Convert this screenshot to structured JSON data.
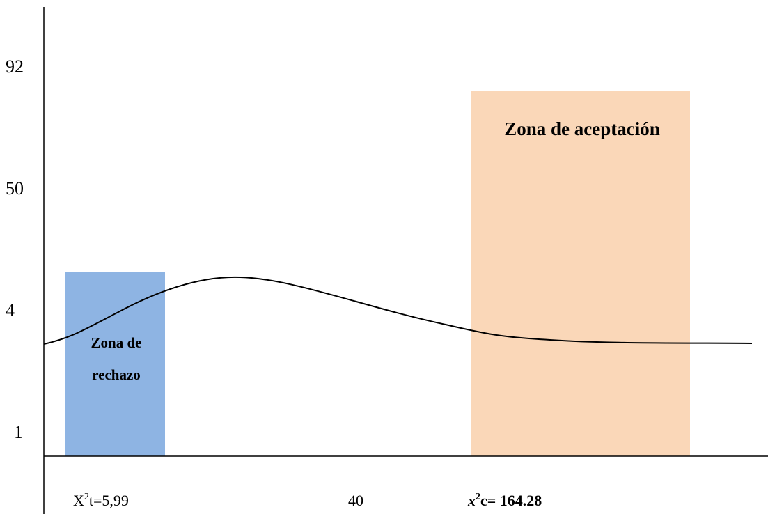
{
  "y_labels": [
    "92",
    "50",
    "4",
    "1"
  ],
  "zones": {
    "rejection": [
      "Zona de",
      "rechazo"
    ],
    "acceptance": "Zona de aceptación"
  },
  "x_labels": [
    {
      "base": "X",
      "sup": "2",
      "rest": "t=5,99"
    },
    {
      "text": "40"
    },
    {
      "base": "x",
      "sup": "2",
      "rest": "c= 164.28"
    }
  ]
}
